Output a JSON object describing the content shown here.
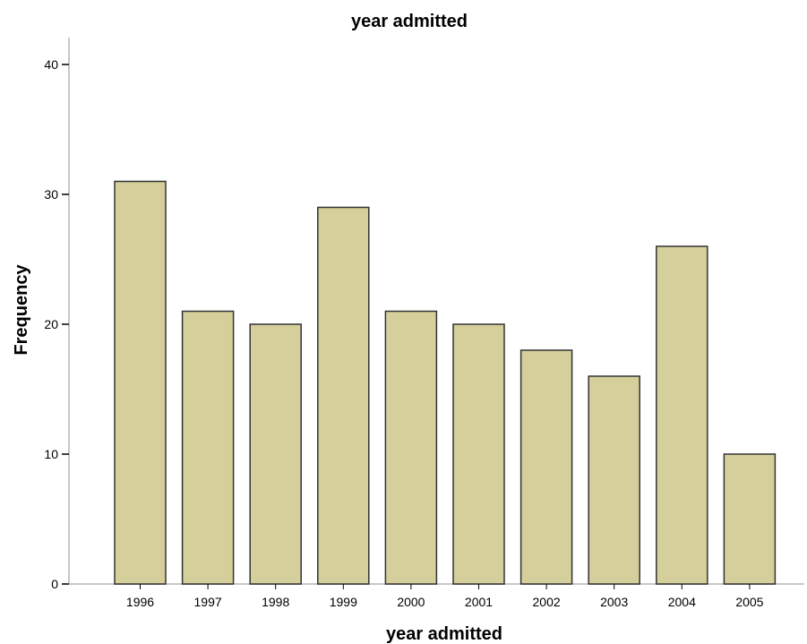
{
  "chart_data": {
    "type": "bar",
    "title": "year admitted",
    "xlabel": "year admitted",
    "ylabel": "Frequency",
    "categories": [
      "1996",
      "1997",
      "1998",
      "1999",
      "2000",
      "2001",
      "2002",
      "2003",
      "2004",
      "2005"
    ],
    "values": [
      31,
      21,
      20,
      29,
      21,
      20,
      18,
      16,
      26,
      10
    ],
    "ylim": [
      0,
      40
    ],
    "yticks": [
      0,
      10,
      20,
      30,
      40
    ],
    "grid": false,
    "colors": {
      "bar_fill": "#d4cf9b",
      "bar_stroke": "#333333",
      "axis": "#c8c8c8",
      "tick": "#000000"
    }
  }
}
